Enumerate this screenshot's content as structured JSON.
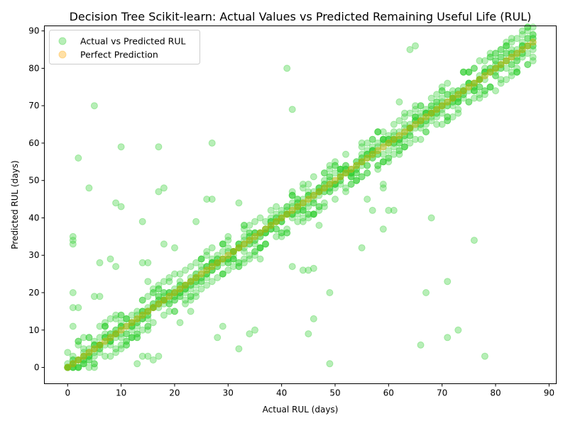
{
  "chart_data": {
    "type": "scatter",
    "title": "Decision Tree Scikit-learn: Actual Values vs Predicted Remaining Useful Life (RUL)",
    "xlabel": "Actual RUL (days)",
    "ylabel": "Predicted RUL (days)",
    "xlim": [
      -4.35,
      91.35
    ],
    "ylim": [
      -4.35,
      91.35
    ],
    "xticks": [
      0,
      10,
      20,
      30,
      40,
      50,
      60,
      70,
      80,
      90
    ],
    "yticks": [
      0,
      10,
      20,
      30,
      40,
      50,
      60,
      70,
      80,
      90
    ],
    "grid": false,
    "legend_position": "top-left",
    "series": [
      {
        "name": "Actual vs Predicted RUL",
        "color": "#32cd32",
        "alpha": 0.35,
        "generated": "diagonal band around y = x from 0 to 87 with scatter of roughly ±5 days plus outliers",
        "band_max": 87,
        "outliers": [
          [
            1,
            35
          ],
          [
            1,
            34
          ],
          [
            1,
            33
          ],
          [
            1,
            20
          ],
          [
            1,
            16
          ],
          [
            1,
            11
          ],
          [
            2,
            56
          ],
          [
            2,
            16
          ],
          [
            4,
            48
          ],
          [
            5,
            70
          ],
          [
            5,
            19
          ],
          [
            6,
            19
          ],
          [
            6,
            28
          ],
          [
            8,
            29
          ],
          [
            9,
            44
          ],
          [
            9,
            27
          ],
          [
            10,
            59
          ],
          [
            10,
            43
          ],
          [
            14,
            39
          ],
          [
            14,
            28
          ],
          [
            15,
            28
          ],
          [
            15,
            23
          ],
          [
            13,
            1
          ],
          [
            14,
            3
          ],
          [
            15,
            3
          ],
          [
            16,
            2
          ],
          [
            17,
            3
          ],
          [
            17,
            59
          ],
          [
            17,
            47
          ],
          [
            18,
            48
          ],
          [
            18,
            33
          ],
          [
            20,
            32
          ],
          [
            21,
            12
          ],
          [
            23,
            15
          ],
          [
            24,
            39
          ],
          [
            26,
            45
          ],
          [
            27,
            45
          ],
          [
            27,
            60
          ],
          [
            28,
            8
          ],
          [
            29,
            11
          ],
          [
            32,
            5
          ],
          [
            32,
            44
          ],
          [
            34,
            9
          ],
          [
            35,
            10
          ],
          [
            36,
            29
          ],
          [
            41,
            80
          ],
          [
            42,
            69
          ],
          [
            42,
            27
          ],
          [
            44,
            26
          ],
          [
            45,
            26
          ],
          [
            46,
            26.5
          ],
          [
            45,
            9
          ],
          [
            46,
            13
          ],
          [
            47,
            38
          ],
          [
            49,
            20
          ],
          [
            49,
            1
          ],
          [
            55,
            32
          ],
          [
            56,
            45
          ],
          [
            57,
            42
          ],
          [
            59,
            37
          ],
          [
            59,
            48
          ],
          [
            59,
            49
          ],
          [
            60,
            42
          ],
          [
            61,
            42
          ],
          [
            64,
            85
          ],
          [
            65,
            86
          ],
          [
            66,
            6
          ],
          [
            67,
            20
          ],
          [
            68,
            40
          ],
          [
            71,
            8
          ],
          [
            71,
            23
          ],
          [
            73,
            10
          ],
          [
            76,
            34
          ],
          [
            78,
            3
          ],
          [
            62,
            71
          ],
          [
            80,
            74
          ]
        ]
      },
      {
        "name": "Perfect Prediction",
        "color": "#ffa500",
        "alpha": 0.35,
        "x_range": [
          0,
          87
        ],
        "y_equals_x": true
      }
    ]
  }
}
